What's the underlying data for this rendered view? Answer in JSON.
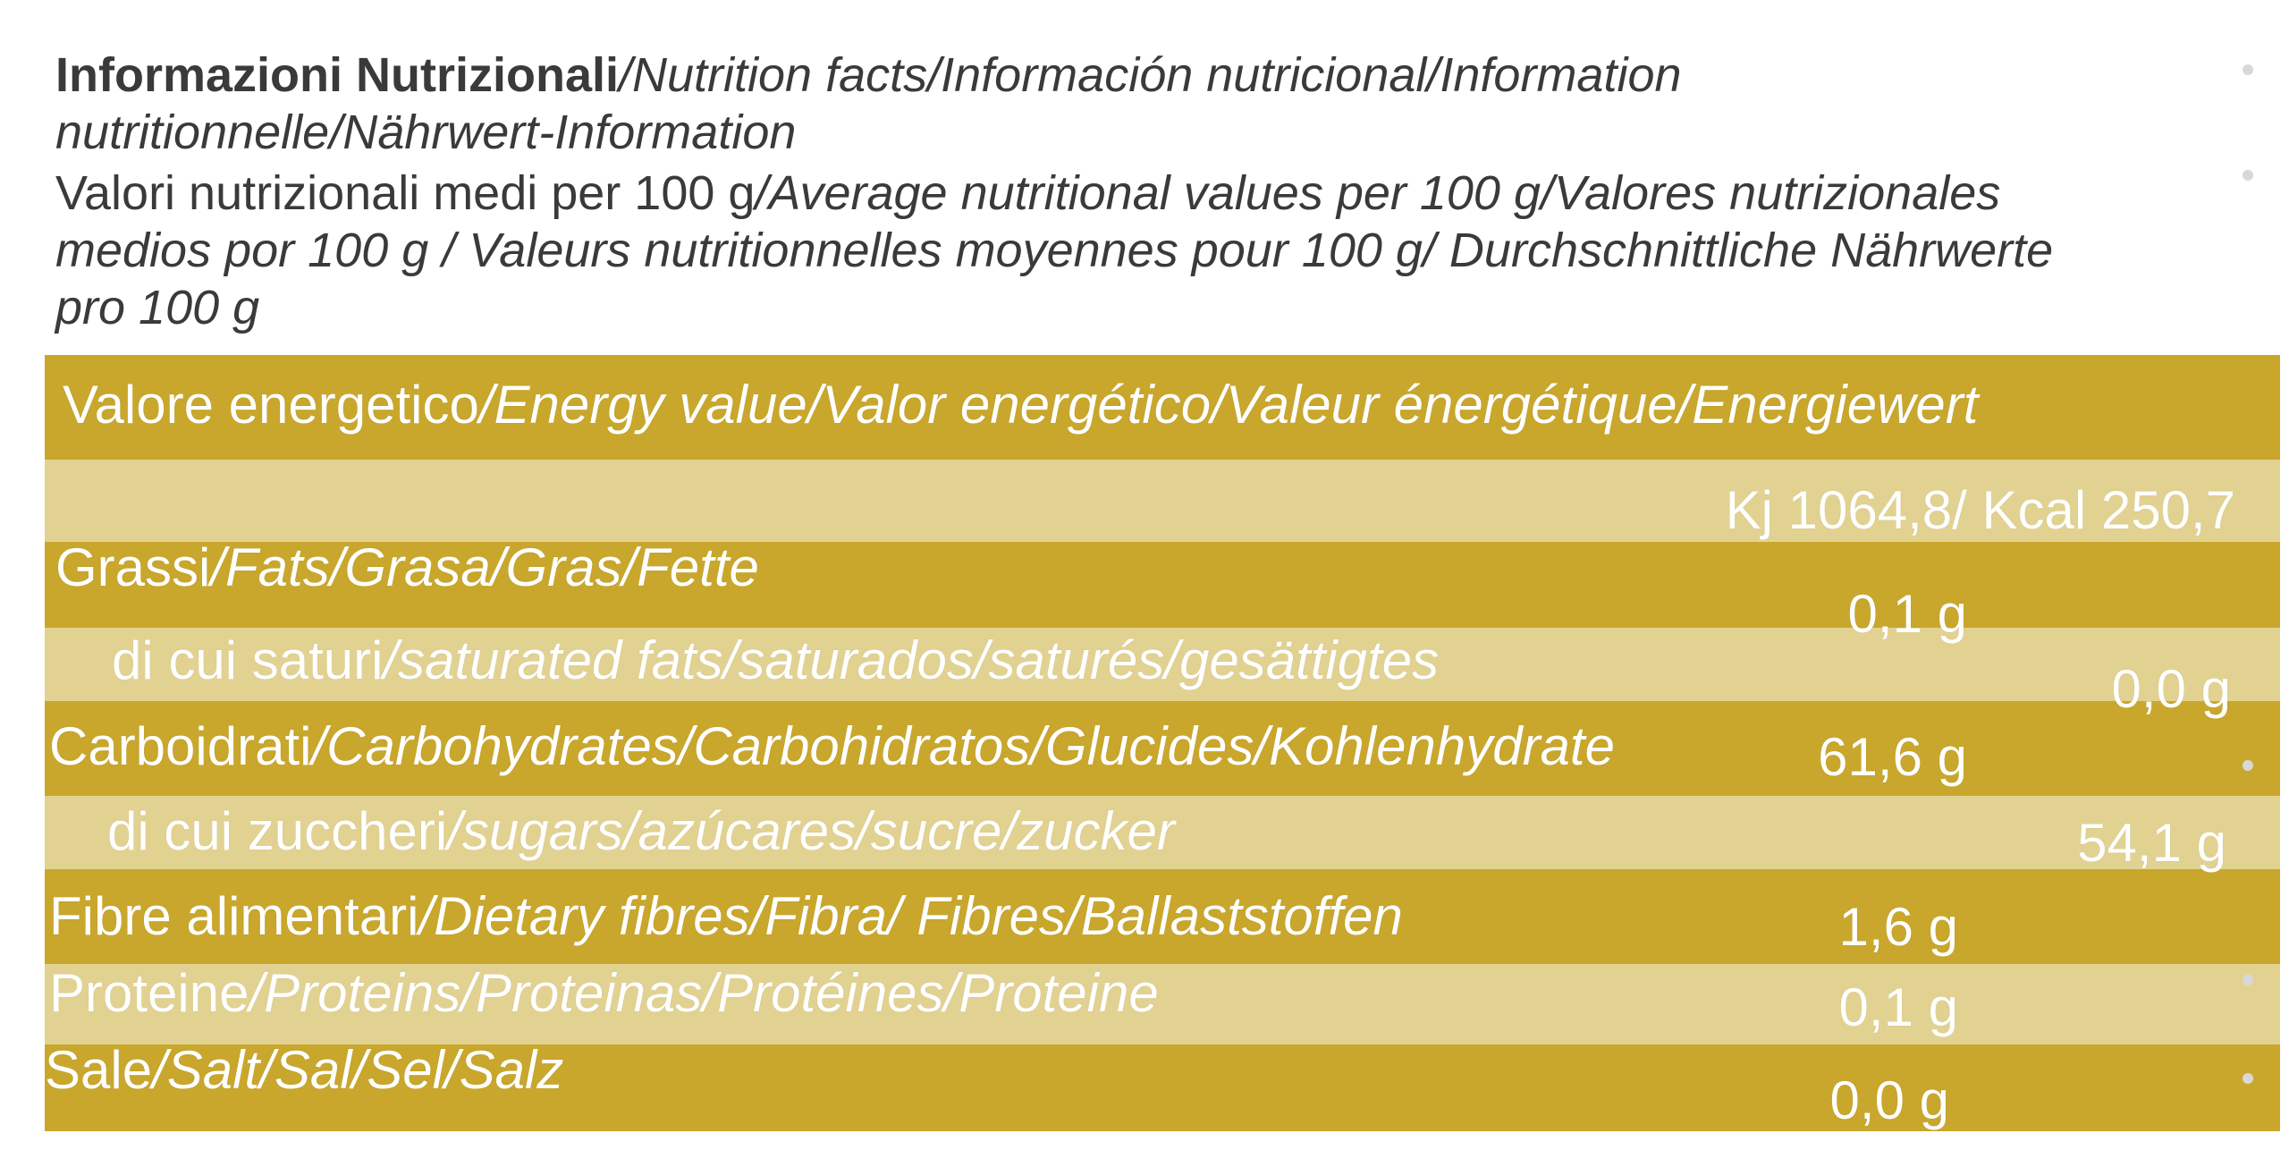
{
  "header": {
    "title": "Informazioni Nutrizionali",
    "title_translations": "/Nutrition facts/Información nutricional/Information nutritionnelle/Nährwert-Information",
    "subtitle": "Valori nutrizionali medi per 100 g",
    "subtitle_translations": "/Average nutritional values per 100 g/Valores nutrizionales medios por 100 g / Valeurs nutritionnelles moyennes pour 100 g/ Durchschnittliche Nährwerte pro 100 g"
  },
  "table": {
    "rows": [
      [
        "Valore energetico",
        "/Energy value/Valor energético/Valeur énergétique/Energiewert",
        "Kj 1064,8/ Kcal 250,7"
      ],
      [
        "Grassi",
        "/Fats/Grasa/Gras/Fette",
        "0,1 g"
      ],
      [
        "di cui saturi",
        "/saturated fats/saturados/saturés/gesättigtes",
        "0,0 g"
      ],
      [
        "Carboidrati",
        "/Carbohydrates/Carbohidratos/Glucides/Kohlenhydrate",
        "61,6 g"
      ],
      [
        "di cui zuccheri",
        "/sugars/azúcares/sucre/zucker",
        "54,1 g"
      ],
      [
        "Fibre alimentari",
        "/Dietary fibres/Fibra/ Fibres/Ballaststoffen",
        "1,6 g"
      ],
      [
        "Proteine",
        "/Proteins/Proteinas/Protéines/Proteine",
        "0,1 g"
      ],
      [
        "Sale",
        "/Salt/Sal/Sel/Salz",
        "0,0 g"
      ]
    ]
  }
}
